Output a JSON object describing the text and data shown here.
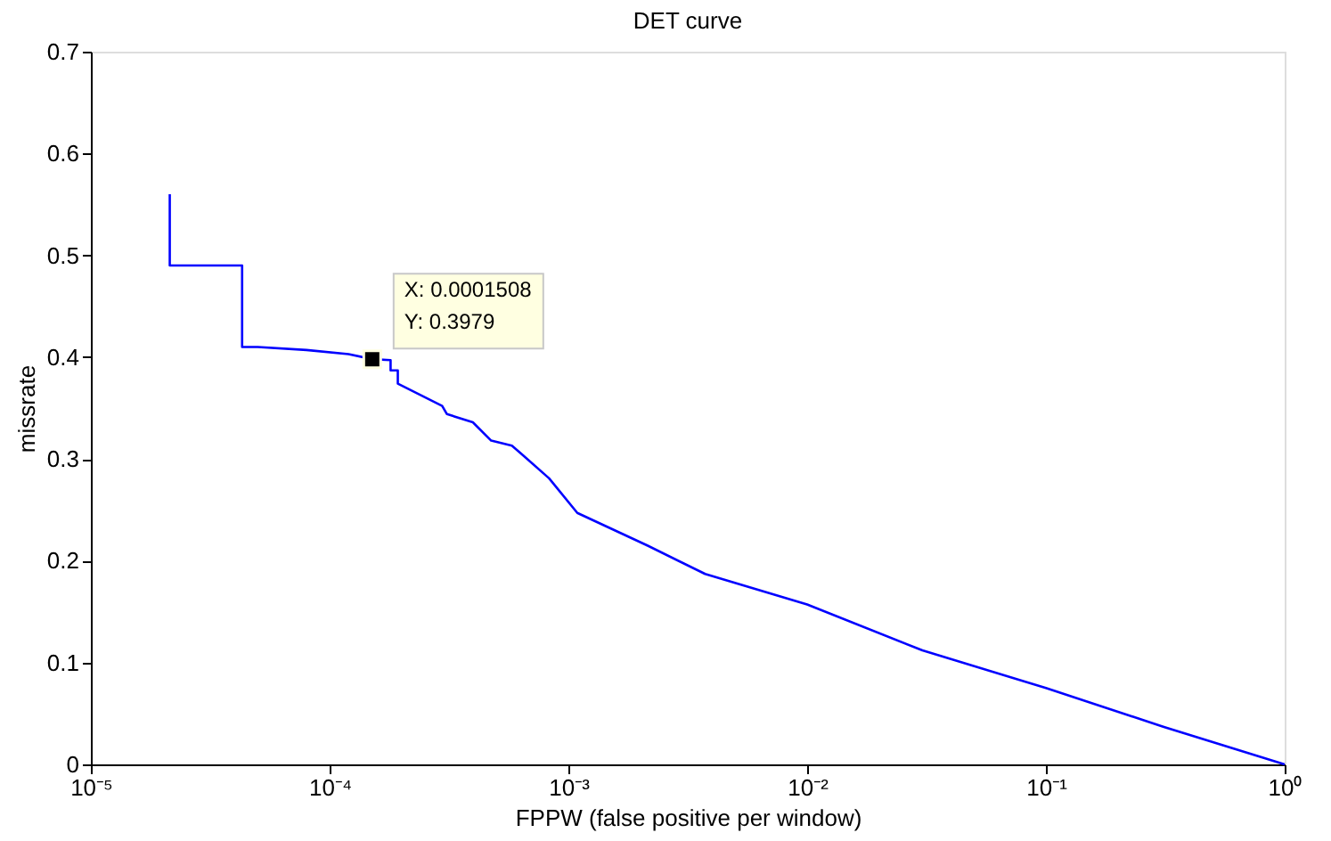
{
  "chart_data": {
    "type": "line",
    "title": "DET curve",
    "xlabel": "FPPW (false positive per window)",
    "ylabel": "missrate",
    "log": "x",
    "grid": false,
    "marker": "none",
    "line_style": "solid",
    "xlim": [
      1e-05,
      1
    ],
    "ylim": [
      0,
      0.7
    ],
    "xticks": [
      {
        "value": 1e-05,
        "label": "10⁻⁵"
      },
      {
        "value": 0.0001,
        "label": "10⁻⁴"
      },
      {
        "value": 0.001,
        "label": "10⁻³"
      },
      {
        "value": 0.01,
        "label": "10⁻²"
      },
      {
        "value": 0.1,
        "label": "10⁻¹"
      },
      {
        "value": 1,
        "label": "10⁰"
      }
    ],
    "yticks": [
      0,
      0.1,
      0.2,
      0.3,
      0.4,
      0.5,
      0.6,
      0.7
    ],
    "series": [
      {
        "color": "#0000ff",
        "x": [
          2.14e-05,
          2.14e-05,
          4.3e-05,
          4.3e-05,
          5e-05,
          8e-05,
          0.00012,
          0.0001508,
          0.00018,
          0.00018,
          0.000193,
          0.000193,
          0.000296,
          0.00031,
          0.000398,
          0.000475,
          0.00058,
          0.00065,
          0.00083,
          0.00109,
          0.00214,
          0.00374,
          0.01,
          0.0304,
          0.1,
          0.31,
          1
        ],
        "values": [
          0.56,
          0.49,
          0.49,
          0.41,
          0.41,
          0.407,
          0.403,
          0.398,
          0.397,
          0.387,
          0.387,
          0.374,
          0.352,
          0.344,
          0.336,
          0.318,
          0.313,
          0.303,
          0.281,
          0.247,
          0.215,
          0.187,
          0.157,
          0.112,
          0.075,
          0.037,
          0
        ]
      }
    ],
    "annotations": [
      {
        "text": "X: 0.0001508\nY: 0.3979",
        "x": 0.0001508,
        "y": 0.3979
      }
    ]
  }
}
